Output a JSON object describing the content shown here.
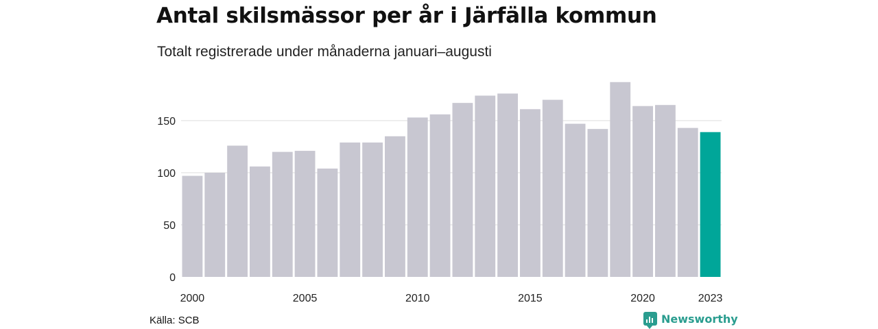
{
  "title": "Antal skilsmässor per år i Järfälla kommun",
  "subtitle": "Totalt registrerade under månaderna januari–augusti",
  "source": "Källa: SCB",
  "brand": "Newsworthy",
  "colors": {
    "bar": "#c8c7d1",
    "highlight": "#00a699",
    "grid": "#dddddd",
    "brand": "#2a9d8f"
  },
  "chart_data": {
    "type": "bar",
    "x": [
      2000,
      2001,
      2002,
      2003,
      2004,
      2005,
      2006,
      2007,
      2008,
      2009,
      2010,
      2011,
      2012,
      2013,
      2014,
      2015,
      2016,
      2017,
      2018,
      2019,
      2020,
      2021,
      2022,
      2023
    ],
    "values": [
      97,
      100,
      126,
      106,
      120,
      121,
      104,
      129,
      129,
      135,
      153,
      156,
      167,
      174,
      176,
      161,
      170,
      147,
      142,
      187,
      164,
      165,
      143,
      139
    ],
    "highlight": [
      2023
    ],
    "x_tick_labels": [
      "2000",
      "2005",
      "2010",
      "2015",
      "2020",
      "2023"
    ],
    "y_ticks": [
      0,
      50,
      100,
      150
    ],
    "ylim": [
      0,
      190
    ],
    "grid": true,
    "xlabel": "",
    "ylabel": ""
  }
}
